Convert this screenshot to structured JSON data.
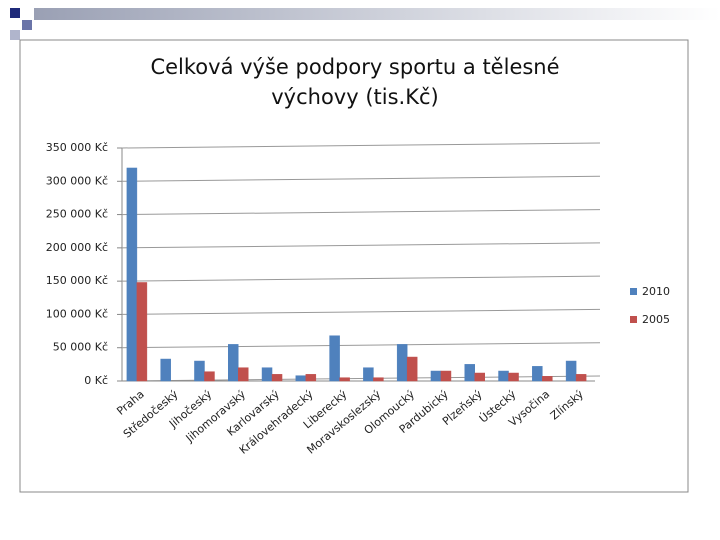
{
  "chart_data": {
    "type": "bar",
    "title": "Celková výše podpory sportu a tělesné výchovy (tis.Kč)",
    "categories": [
      "Praha",
      "Středočeský",
      "Jihočeský",
      "Jihomoravský",
      "Karlovarský",
      "Královehradecký",
      "Liberecký",
      "Moravskoslezský",
      "Olomoucký",
      "Pardubický",
      "Plzeňský",
      "Ústecký",
      "Vysočina",
      "Zlínský"
    ],
    "series": [
      {
        "name": "2010",
        "color": "#4f81bd",
        "values": [
          320000,
          33000,
          30000,
          55000,
          20000,
          8000,
          68000,
          20000,
          55000,
          15000,
          25000,
          15000,
          22000,
          30000
        ]
      },
      {
        "name": "2005",
        "color": "#c0504d",
        "values": [
          148000,
          0,
          14000,
          20000,
          10000,
          10000,
          5000,
          5000,
          36000,
          15000,
          12000,
          12000,
          7000,
          10000
        ]
      }
    ],
    "ylim": [
      0,
      350000
    ],
    "yticks": [
      {
        "value": 0,
        "label": "0 Kč"
      },
      {
        "value": 50000,
        "label": "50 000 Kč"
      },
      {
        "value": 100000,
        "label": "100 000 Kč"
      },
      {
        "value": 150000,
        "label": "150 000 Kč"
      },
      {
        "value": 200000,
        "label": "200 000 Kč"
      },
      {
        "value": 250000,
        "label": "250 000 Kč"
      },
      {
        "value": 300000,
        "label": "300 000 Kč"
      },
      {
        "value": 350000,
        "label": "350 000 Kč"
      }
    ],
    "grid": true,
    "legend": "right"
  }
}
